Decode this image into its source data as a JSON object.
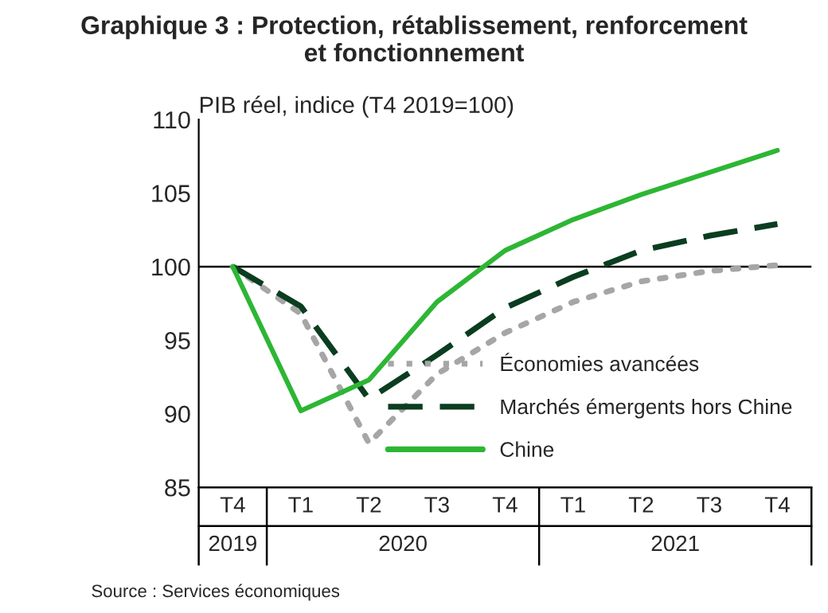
{
  "chart_data": {
    "type": "line",
    "title": "Graphique 3 : Protection, rétablissement, renforcement\net fonctionnement",
    "ylabel": "PIB réel, indice (T4 2019=100)",
    "categories": [
      "T4",
      "T1",
      "T2",
      "T3",
      "T4",
      "T1",
      "T2",
      "T3",
      "T4"
    ],
    "series": [
      {
        "name": "Économies avancées",
        "color": "#a6a6a6",
        "line_style": "dotted",
        "values": [
          100,
          96.8,
          88.0,
          92.7,
          95.5,
          97.6,
          99.0,
          99.7,
          100.1
        ]
      },
      {
        "name": "Marchés émergents hors Chine",
        "color": "#0b3d20",
        "line_style": "dashed",
        "values": [
          100,
          97.3,
          91.0,
          94.0,
          97.2,
          99.3,
          101.1,
          102.1,
          102.9
        ]
      },
      {
        "name": "Chine",
        "color": "#2db634",
        "line_style": "solid",
        "values": [
          100,
          90.2,
          92.3,
          97.6,
          101.1,
          103.2,
          104.9,
          106.4,
          107.9
        ]
      }
    ],
    "ylim": [
      85,
      110
    ],
    "yticks": [
      85,
      90,
      95,
      100,
      105,
      110
    ],
    "ref_lines": [
      {
        "axis": "y",
        "value": 100,
        "color": "#000000"
      }
    ],
    "grid": false,
    "legend": "bottom right",
    "annotations": [
      "2019",
      "2020",
      "2021",
      "Source : Services économiques"
    ]
  }
}
